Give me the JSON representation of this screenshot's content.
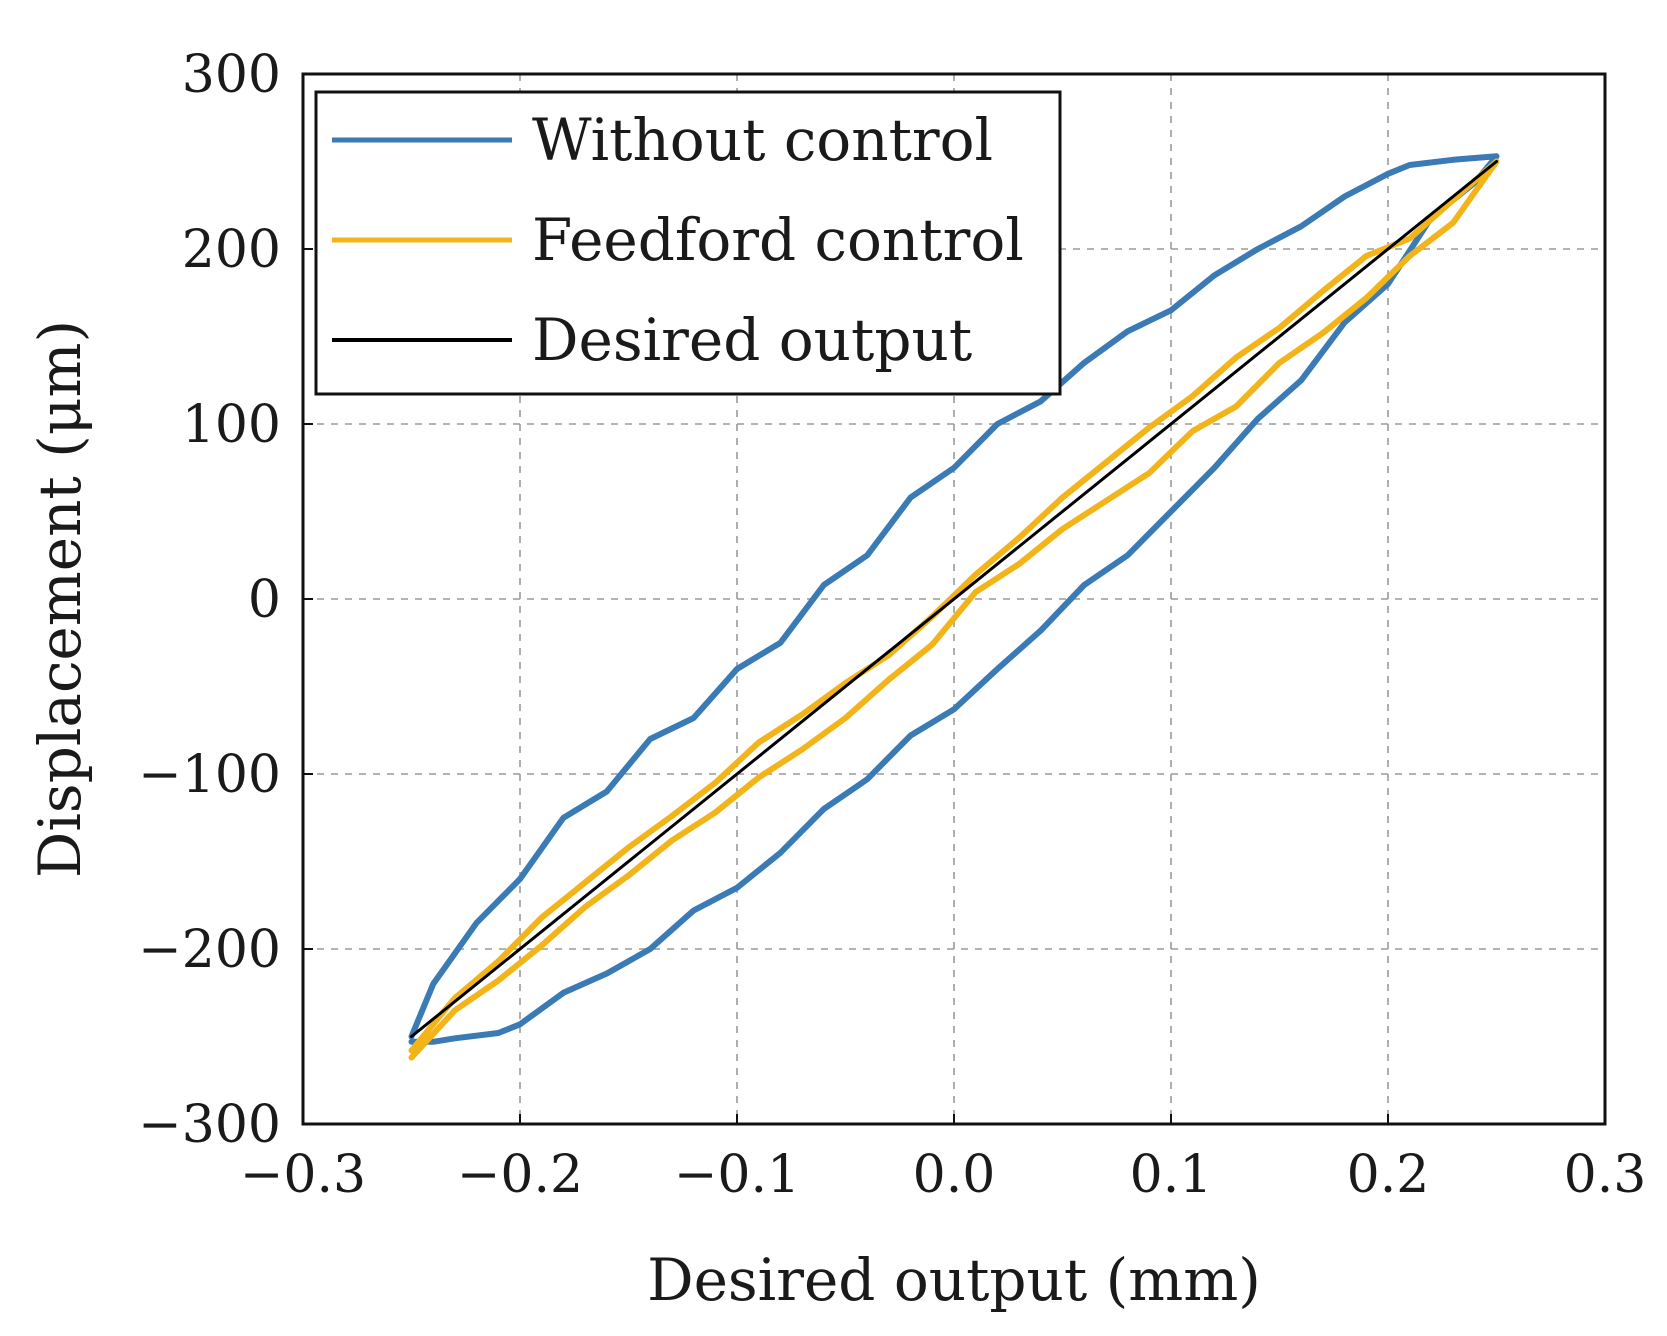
{
  "chart_data": {
    "type": "line",
    "title": "",
    "xlabel": "Desired output (mm)",
    "ylabel": "Displacement (μm)",
    "xlim": [
      -0.3,
      0.3
    ],
    "ylim": [
      -300,
      300
    ],
    "x_ticks": [
      -0.3,
      -0.2,
      -0.1,
      0.0,
      0.1,
      0.2,
      0.3
    ],
    "x_tick_labels": [
      "−0.3",
      "−0.2",
      "−0.1",
      "0.0",
      "0.1",
      "0.2",
      "0.3"
    ],
    "y_ticks": [
      -300,
      -200,
      -100,
      0,
      100,
      200,
      300
    ],
    "y_tick_labels": [
      "−300",
      "−200",
      "−100",
      "0",
      "100",
      "200",
      "300"
    ],
    "grid": true,
    "legend_position": "top-left",
    "series": [
      {
        "name": "Without control",
        "color": "#3a7ab5",
        "x": [
          -0.25,
          -0.24,
          -0.23,
          -0.21,
          -0.2,
          -0.18,
          -0.16,
          -0.14,
          -0.12,
          -0.1,
          -0.08,
          -0.06,
          -0.04,
          -0.02,
          0.0,
          0.02,
          0.04,
          0.06,
          0.08,
          0.1,
          0.12,
          0.14,
          0.16,
          0.18,
          0.2,
          0.22,
          0.24,
          0.25,
          0.24,
          0.23,
          0.21,
          0.2,
          0.18,
          0.16,
          0.14,
          0.12,
          0.1,
          0.08,
          0.06,
          0.04,
          0.02,
          0.0,
          -0.02,
          -0.04,
          -0.06,
          -0.08,
          -0.1,
          -0.12,
          -0.14,
          -0.16,
          -0.18,
          -0.2,
          -0.22,
          -0.24,
          -0.25
        ],
        "y": [
          -253,
          -253,
          -251,
          -248,
          -243,
          -225,
          -214,
          -200,
          -178,
          -165,
          -145,
          -120,
          -103,
          -78,
          -63,
          -40,
          -18,
          8,
          25,
          50,
          75,
          103,
          125,
          158,
          180,
          218,
          238,
          253,
          252,
          251,
          248,
          243,
          230,
          213,
          200,
          185,
          165,
          153,
          135,
          113,
          100,
          75,
          58,
          25,
          8,
          -25,
          -40,
          -68,
          -80,
          -110,
          -125,
          -160,
          -185,
          -220,
          -250
        ]
      },
      {
        "name": "Feedford control",
        "color": "#f2b418",
        "x": [
          -0.25,
          -0.23,
          -0.21,
          -0.19,
          -0.17,
          -0.15,
          -0.13,
          -0.11,
          -0.09,
          -0.07,
          -0.05,
          -0.03,
          -0.01,
          0.01,
          0.03,
          0.05,
          0.07,
          0.09,
          0.11,
          0.13,
          0.15,
          0.17,
          0.19,
          0.21,
          0.23,
          0.25,
          0.23,
          0.21,
          0.19,
          0.17,
          0.15,
          0.13,
          0.11,
          0.09,
          0.07,
          0.05,
          0.03,
          0.01,
          -0.01,
          -0.03,
          -0.05,
          -0.07,
          -0.09,
          -0.11,
          -0.13,
          -0.15,
          -0.17,
          -0.19,
          -0.21,
          -0.23,
          -0.25
        ],
        "y": [
          -262,
          -235,
          -218,
          -198,
          -176,
          -158,
          -138,
          -122,
          -102,
          -86,
          -68,
          -46,
          -26,
          4,
          20,
          40,
          56,
          72,
          96,
          110,
          135,
          152,
          172,
          196,
          215,
          250,
          228,
          206,
          196,
          176,
          155,
          138,
          116,
          98,
          78,
          58,
          35,
          14,
          -10,
          -32,
          -48,
          -66,
          -82,
          -105,
          -124,
          -142,
          -162,
          -182,
          -207,
          -228,
          -258
        ]
      },
      {
        "name": "Desired output",
        "color": "#000000",
        "x": [
          -0.25,
          0.25
        ],
        "y": [
          -250,
          250
        ]
      }
    ]
  }
}
